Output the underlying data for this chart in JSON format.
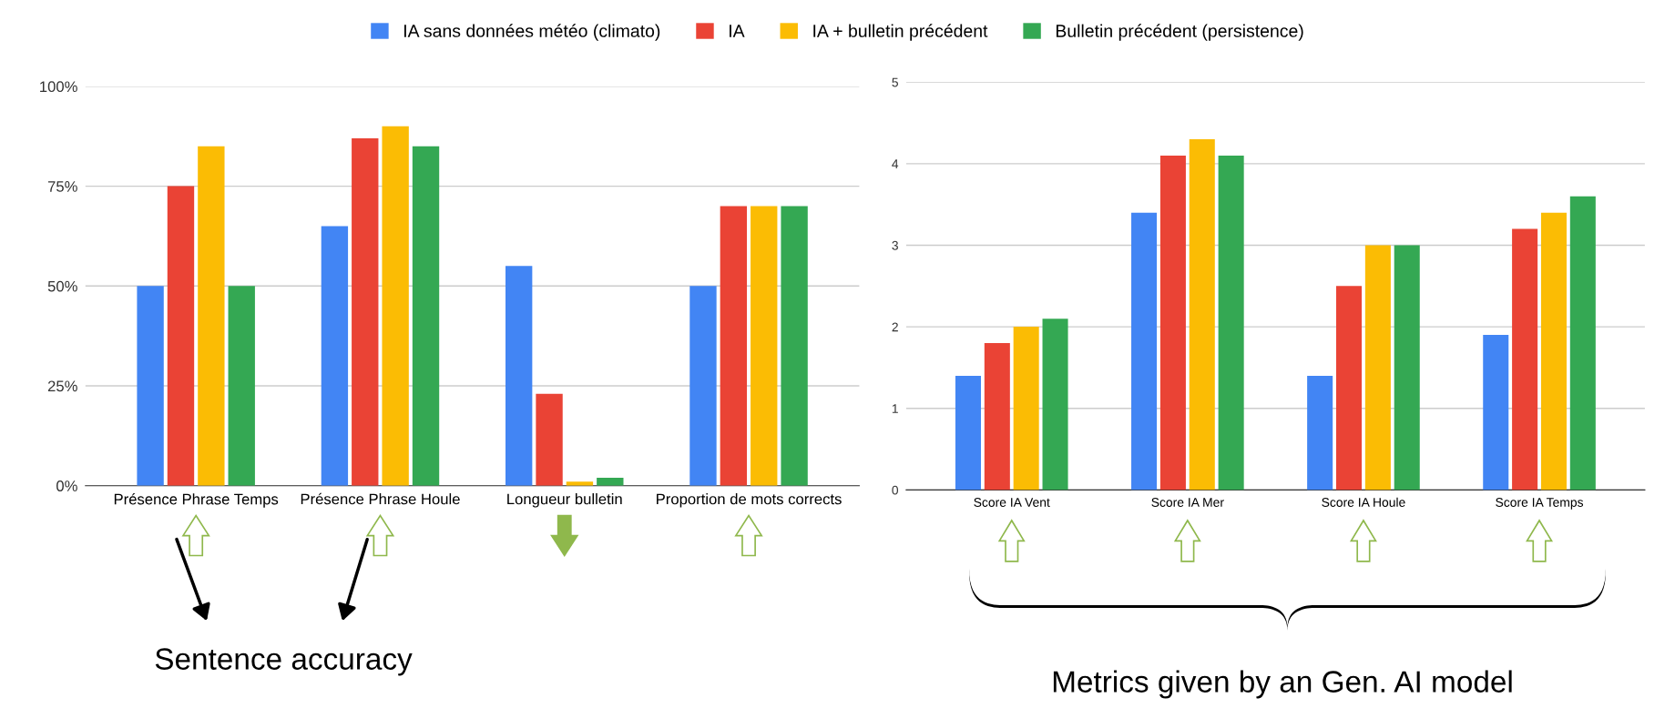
{
  "chart_data": [
    {
      "type": "bar",
      "categories": [
        "Présence Phrase Temps",
        "Présence Phrase Houle",
        "Longueur bulletin",
        "Proportion de mots corrects"
      ],
      "series": [
        {
          "name": "IA sans données météo (climato)",
          "color": "#4285f4",
          "values": [
            50,
            65,
            55,
            50
          ]
        },
        {
          "name": "IA",
          "color": "#ea4335",
          "values": [
            75,
            87,
            23,
            70
          ]
        },
        {
          "name": "IA + bulletin précédent",
          "color": "#fbbc04",
          "values": [
            85,
            90,
            1,
            70
          ]
        },
        {
          "name": "Bulletin précédent (persistence)",
          "color": "#34a853",
          "values": [
            50,
            85,
            2,
            70
          ]
        }
      ],
      "ylim": [
        0,
        100
      ],
      "yticks": [
        {
          "value": 0,
          "label": "0%"
        },
        {
          "value": 25,
          "label": "25%"
        },
        {
          "value": 50,
          "label": "50%"
        },
        {
          "value": 75,
          "label": "75%"
        },
        {
          "value": 100,
          "label": "100%"
        }
      ],
      "grid": "y",
      "legend": "top",
      "annotations": [
        "Sentence accuracy"
      ]
    },
    {
      "type": "bar",
      "categories": [
        "Score IA Vent",
        "Score IA Mer",
        "Score IA Houle",
        "Score IA Temps"
      ],
      "series": [
        {
          "color": "#4285f4",
          "values": [
            1.4,
            3.4,
            1.4,
            1.9
          ]
        },
        {
          "color": "#ea4335",
          "values": [
            1.8,
            4.1,
            2.5,
            3.2
          ]
        },
        {
          "color": "#fbbc04",
          "values": [
            2.0,
            4.3,
            3.0,
            3.4
          ]
        },
        {
          "color": "#34a853",
          "values": [
            2.1,
            4.1,
            3.0,
            3.6
          ]
        }
      ],
      "ylim": [
        0,
        5
      ],
      "yticks": [
        0,
        1,
        2,
        3,
        4,
        5
      ],
      "grid": "y",
      "annotations": [
        "Metrics given by an Gen. AI model"
      ]
    }
  ]
}
